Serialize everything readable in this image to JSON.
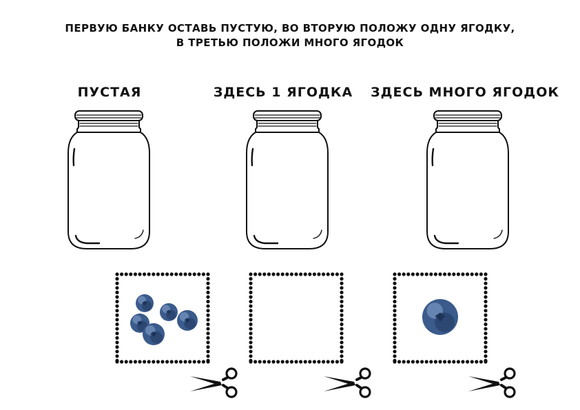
{
  "instruction": {
    "line1": "ПЕРВУЮ БАНКУ ОСТАВЬ ПУСТУЮ, ВО ВТОРУЮ ПОЛОЖУ ОДНУ ЯГОДКУ,",
    "line2": "В ТРЕТЬЮ ПОЛОЖИ МНОГО ЯГОДОК"
  },
  "jars": [
    {
      "label": "ПУСТАЯ"
    },
    {
      "label": "ЗДЕСЬ 1 ЯГОДКА"
    },
    {
      "label": "ЗДЕСЬ МНОГО ЯГОДОК"
    }
  ],
  "cut_cards": [
    {
      "content": "five-blueberries",
      "berry_count": 5
    },
    {
      "content": "empty",
      "berry_count": 0
    },
    {
      "content": "one-blueberry",
      "berry_count": 1
    }
  ],
  "colors": {
    "ink": "#111111",
    "berry": "#3a5b8c",
    "berry_dark": "#1e3358",
    "berry_light": "#8aa6cf"
  },
  "icons": [
    "jar-icon",
    "blueberry-icon",
    "scissors-icon"
  ]
}
